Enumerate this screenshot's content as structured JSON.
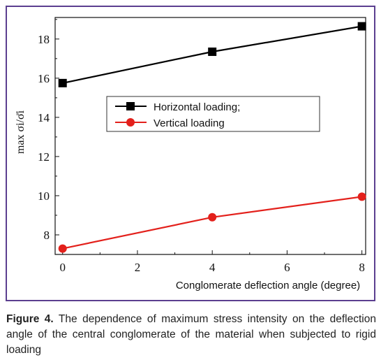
{
  "caption": {
    "label": "Figure 4.",
    "text": "The dependence of maximum stress intensity on the deflection angle of the central conglomerate of the material when subjected to rigid loading"
  },
  "colors": {
    "frame": "#5b3f8f",
    "horizontal": "#000000",
    "vertical": "#e3201b"
  },
  "chart_data": {
    "type": "line",
    "xlabel": "Conglomerate deflection angle (degree)",
    "ylabel": "max σi/σ̄i",
    "xlim": [
      -0.2,
      8.1
    ],
    "ylim": [
      7.0,
      19.1
    ],
    "xticks": [
      0,
      2,
      4,
      6,
      8
    ],
    "xtick_labels": [
      "0",
      "2",
      "4",
      "6",
      "8"
    ],
    "yticks": [
      8,
      10,
      12,
      14,
      16,
      18
    ],
    "ytick_labels": [
      "8",
      "10",
      "12",
      "14",
      "16",
      "18"
    ],
    "legend_position": "center",
    "series": [
      {
        "name": "Horizontal loading;",
        "marker": "square",
        "color": "#000000",
        "x": [
          0,
          4,
          8
        ],
        "y": [
          15.75,
          17.35,
          18.65
        ]
      },
      {
        "name": "Vertical loading",
        "marker": "circle",
        "color": "#e3201b",
        "x": [
          0,
          4,
          8
        ],
        "y": [
          7.3,
          8.9,
          9.95
        ]
      }
    ]
  }
}
